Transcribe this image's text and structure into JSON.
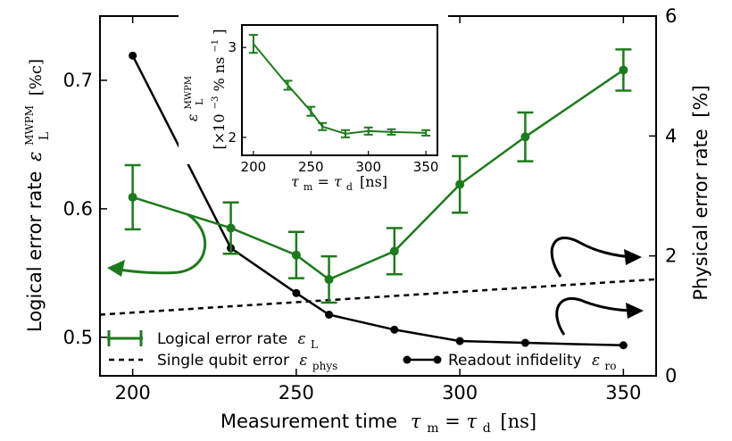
{
  "chart_data": [
    {
      "type": "line",
      "xlabel": "Measurement time",
      "xlabel_symbol": "τ",
      "xlabel_sub": "m",
      "xlabel_eq": " = ",
      "xlabel_symbol2": "τ",
      "xlabel_sub2": "d",
      "xlabel_unit": "[ns]",
      "ylabel_left": "Logical error rate",
      "ylabel_left_symbol": "ε",
      "ylabel_left_sub": "L",
      "ylabel_left_sup": "MWPM",
      "ylabel_left_unit": "[%c]",
      "ylabel_right": "Physical error rate",
      "ylabel_right_unit": "[%]",
      "xlim": [
        190,
        360
      ],
      "ylim_left": [
        0.47,
        0.75
      ],
      "ylim_right": [
        0,
        6
      ],
      "x_ticks": [
        "200",
        "250",
        "300",
        "350"
      ],
      "y_ticks_left": [
        "0.5",
        "0.6",
        "0.7"
      ],
      "y_ticks_right": [
        "0",
        "2",
        "4",
        "6"
      ],
      "grid": false,
      "legend_position": "bottom",
      "series": [
        {
          "name": "Logical error rate",
          "name_symbol": "ε",
          "name_sub": "L",
          "axis": "left",
          "color": "#1e7a1e",
          "x": [
            200,
            230,
            250,
            260,
            280,
            300,
            320,
            350
          ],
          "y": [
            0.609,
            0.585,
            0.564,
            0.545,
            0.567,
            0.619,
            0.656,
            0.708
          ],
          "yerr": [
            0.025,
            0.02,
            0.018,
            0.018,
            0.018,
            0.022,
            0.019,
            0.016
          ]
        },
        {
          "name": "Single qubit error",
          "name_symbol": "ε",
          "name_sub": "phys",
          "axis": "right",
          "color": "#000000",
          "style": "dashed",
          "x": [
            190,
            360
          ],
          "y": [
            1.02,
            1.61
          ]
        },
        {
          "name": "Readout infidelity",
          "name_symbol": "ε",
          "name_sub": "ro",
          "axis": "right",
          "color": "#000000",
          "x": [
            200,
            230,
            250,
            260,
            280,
            300,
            320,
            350
          ],
          "y": [
            5.34,
            2.13,
            1.38,
            1.02,
            0.77,
            0.58,
            0.55,
            0.51
          ]
        }
      ]
    },
    {
      "type": "line",
      "position": "inset-top",
      "xlabel_symbol": "τ",
      "xlabel_sub": "m",
      "xlabel_eq": " = ",
      "xlabel_symbol2": "τ",
      "xlabel_sub2": "d",
      "xlabel_unit": "[ns]",
      "ylabel_symbol": "ε",
      "ylabel_sub": "L",
      "ylabel_sup": "MWPM",
      "ylabel_unit": "[×10",
      "ylabel_exp": "−3",
      "ylabel_unit2": "% ns",
      "ylabel_exp2": "−1",
      "ylabel_close": "]",
      "xlim": [
        190,
        360
      ],
      "ylim": [
        1.8,
        3.25
      ],
      "x_ticks": [
        "200",
        "250",
        "300",
        "350"
      ],
      "y_ticks": [
        "2",
        "3"
      ],
      "grid": false,
      "series": [
        {
          "color": "#1e7a1e",
          "x": [
            200,
            230,
            250,
            260,
            280,
            300,
            320,
            350
          ],
          "y": [
            3.04,
            2.58,
            2.29,
            2.12,
            2.04,
            2.07,
            2.06,
            2.05
          ],
          "yerr": [
            0.1,
            0.05,
            0.05,
            0.04,
            0.04,
            0.04,
            0.03,
            0.03
          ]
        }
      ]
    }
  ]
}
